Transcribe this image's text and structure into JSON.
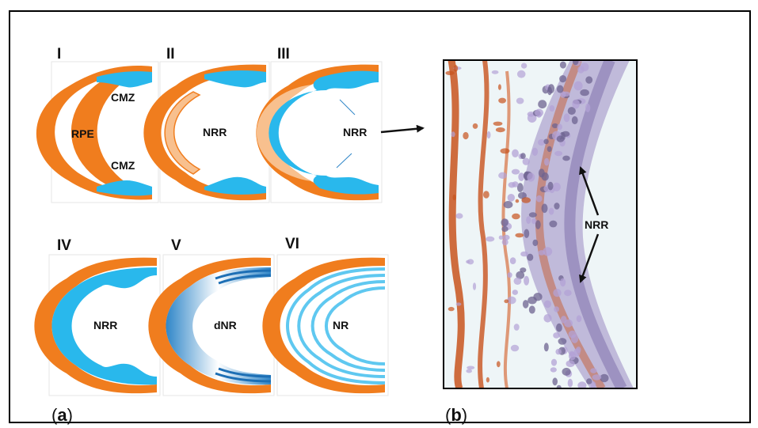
{
  "panel_a": {
    "caption_open": "(",
    "caption_letter": "a",
    "caption_close": ")",
    "stages": [
      {
        "numeral": "I",
        "labels": [
          "CMZ",
          "RPE",
          "CMZ"
        ]
      },
      {
        "numeral": "II",
        "labels": [
          "NRR"
        ]
      },
      {
        "numeral": "III",
        "labels": [
          "NRR"
        ]
      },
      {
        "numeral": "IV",
        "labels": [
          "NRR"
        ]
      },
      {
        "numeral": "V",
        "labels": [
          "dNR"
        ]
      },
      {
        "numeral": "VI",
        "labels": [
          "NR"
        ]
      }
    ]
  },
  "panel_b": {
    "caption_open": "(",
    "caption_letter": "b",
    "caption_close": ")",
    "label": "NRR"
  },
  "colors": {
    "rpe_orange": "#f07d1e",
    "light_orange": "#f8c08e",
    "neural_blue": "#29b8ec",
    "dark_blue": "#1d6fb5",
    "light_blue": "#5fc8f0",
    "tissue_bg": "#eef5f7",
    "stain_brown": "#c8531d",
    "nuclei_purple": "#9a88c2"
  }
}
